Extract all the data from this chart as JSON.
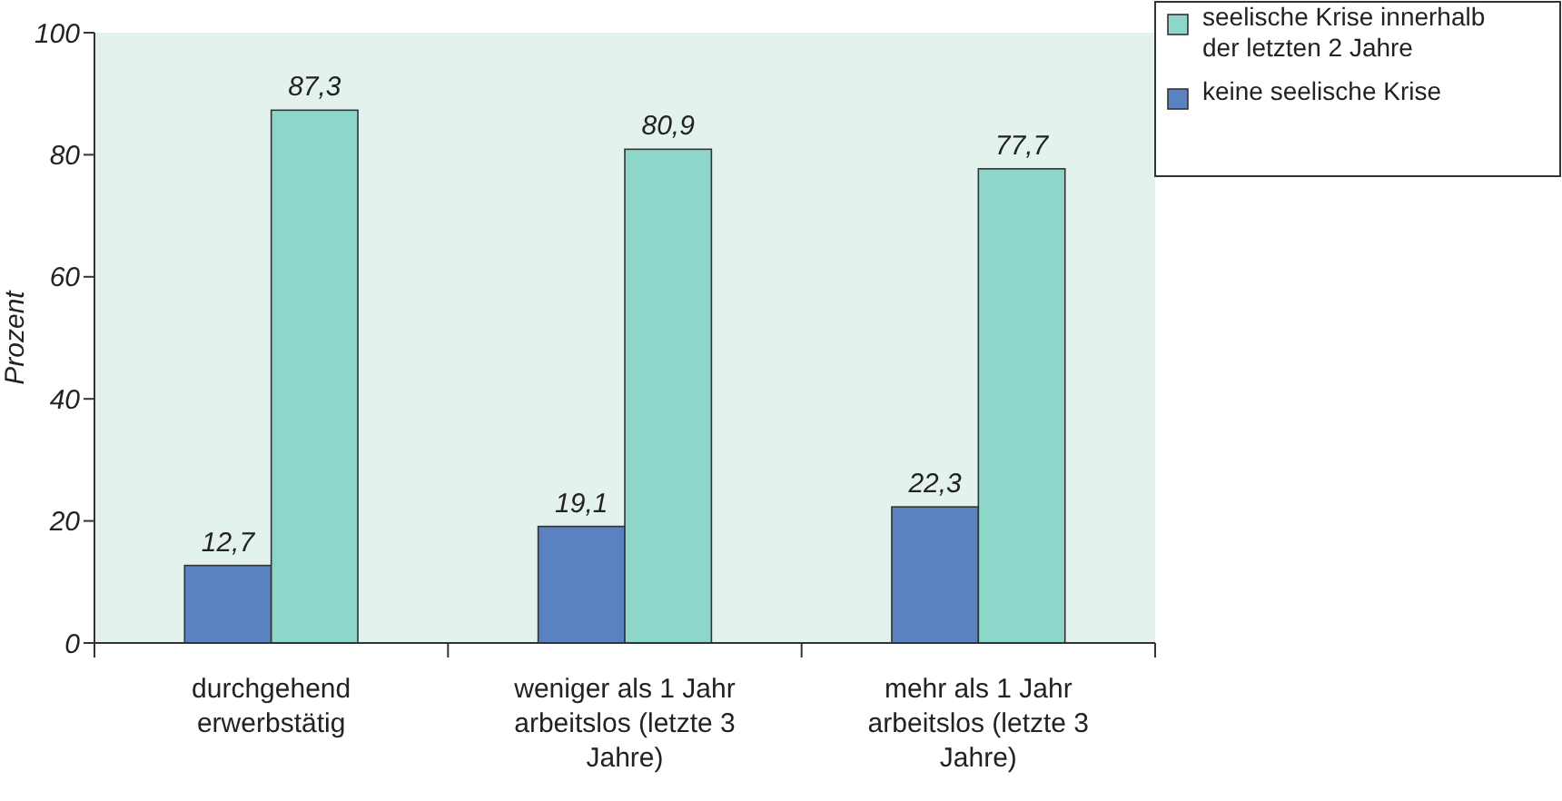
{
  "chart_data": {
    "type": "bar",
    "ylabel": "Prozent",
    "categories": [
      "durchgehend erwerbstätig",
      "weniger als 1 Jahr arbeitslos (letzte 3 Jahre)",
      "mehr als 1 Jahr arbeitslos (letzte 3 Jahre)"
    ],
    "series": [
      {
        "name": "keine seelische Krise",
        "color": "#5b82c0",
        "values": [
          12.7,
          19.1,
          22.3
        ],
        "value_labels": [
          "12,7",
          "19,1",
          "22,3"
        ]
      },
      {
        "name": "seelische Krise innerhalb der letzten 2 Jahre",
        "color": "#8dd6c9",
        "values": [
          87.3,
          80.9,
          77.7
        ],
        "value_labels": [
          "87,3",
          "80,9",
          "77,7"
        ]
      }
    ],
    "ylim": [
      0,
      100
    ],
    "yticks": [
      0,
      20,
      40,
      60,
      80,
      100
    ],
    "grid": false,
    "legend": "top right"
  }
}
